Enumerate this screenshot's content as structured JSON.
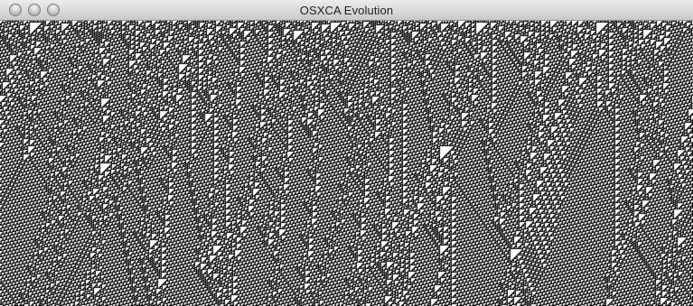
{
  "window": {
    "title": "OSXCA Evolution",
    "buttons": [
      "close",
      "minimize",
      "zoom"
    ]
  },
  "canvas": {
    "description": "",
    "cell_color": "#000000",
    "background_color": "#ffffff"
  }
}
